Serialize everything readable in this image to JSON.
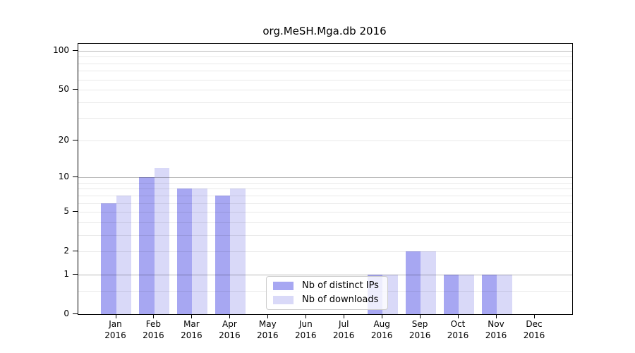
{
  "chart_data": {
    "type": "bar",
    "title": "org.MeSH.Mga.db 2016",
    "categories": [
      "Jan",
      "Feb",
      "Mar",
      "Apr",
      "May",
      "Jun",
      "Jul",
      "Aug",
      "Sep",
      "Oct",
      "Nov",
      "Dec"
    ],
    "category_year": "2016",
    "series": [
      {
        "name": "Nb of distinct IPs",
        "color": "#a7a7f2",
        "values": [
          6,
          10,
          8,
          7,
          0,
          0,
          0,
          1,
          2,
          1,
          1,
          0
        ]
      },
      {
        "name": "Nb of downloads",
        "color": "#d9d9f8",
        "values": [
          7,
          12,
          8,
          8,
          0,
          0,
          0,
          1,
          2,
          1,
          1,
          0
        ]
      }
    ],
    "yscale": "log1p",
    "ylim": [
      0,
      112
    ],
    "yticks": [
      0,
      1,
      2,
      5,
      10,
      20,
      50,
      100
    ],
    "major_gridlines": [
      1,
      10,
      100
    ],
    "minor_gridlines": [
      0.5,
      2,
      3,
      4,
      5,
      6,
      7,
      8,
      9,
      20,
      30,
      40,
      50,
      60,
      70,
      80,
      90
    ],
    "grid": "horizontal",
    "legend_position": "inside-bottom-left-of-center"
  },
  "legend": {
    "items": [
      {
        "label": "Nb of distinct IPs"
      },
      {
        "label": "Nb of downloads"
      }
    ]
  },
  "colors": {
    "bar_ips": "#a7a7f2",
    "bar_downloads": "#d9d9f8",
    "axis": "#000000",
    "legend_border": "#cccccc"
  }
}
